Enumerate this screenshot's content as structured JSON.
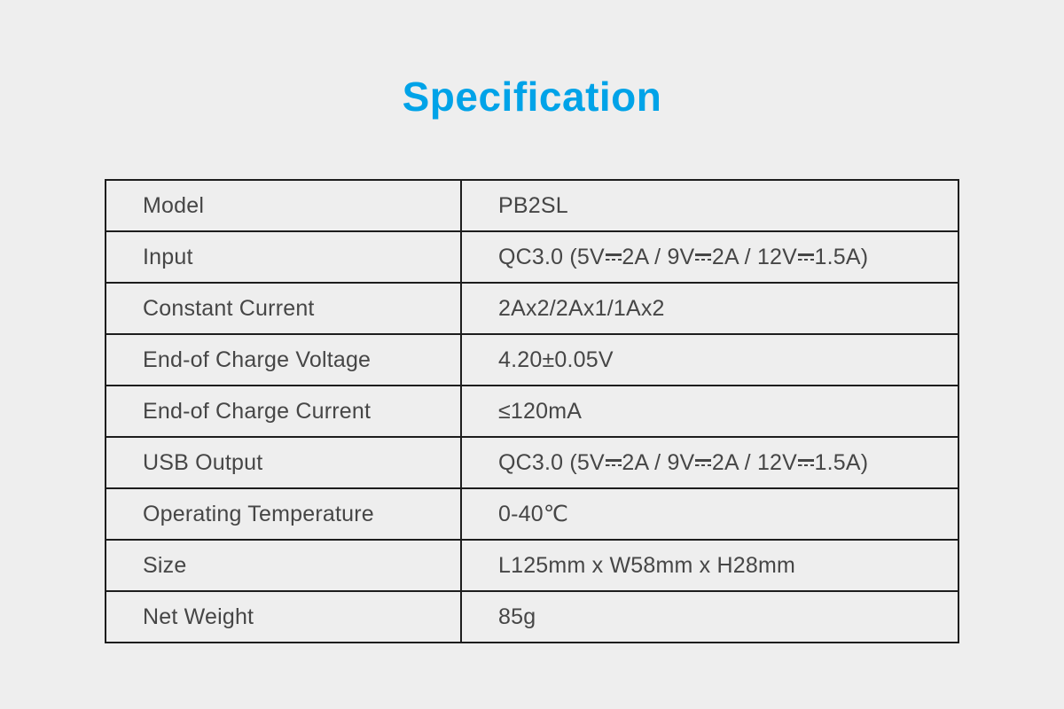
{
  "theme": {
    "background": "#eeeeee",
    "accent": "#00a3e8",
    "table_border": "#1d1d1d",
    "text": "#464646"
  },
  "title": {
    "text": "Specification"
  },
  "table": {
    "rows": [
      {
        "label": "Model",
        "value": "PB2SL"
      },
      {
        "label": "Input",
        "value": "QC3.0 (5V⎓2A / 9V⎓2A / 12V⎓1.5A)"
      },
      {
        "label": "Constant Current",
        "value": "2Ax2/2Ax1/1Ax2"
      },
      {
        "label": "End-of Charge Voltage",
        "value": "4.20±0.05V"
      },
      {
        "label": "End-of Charge Current",
        "value": "≤120mA"
      },
      {
        "label": "USB Output",
        "value": "QC3.0 (5V⎓2A / 9V⎓2A / 12V⎓1.5A)"
      },
      {
        "label": "Operating Temperature",
        "value": "0-40℃"
      },
      {
        "label": "Size",
        "value": "L125mm x W58mm x H28mm"
      },
      {
        "label": "Net Weight",
        "value": "85g"
      }
    ]
  }
}
